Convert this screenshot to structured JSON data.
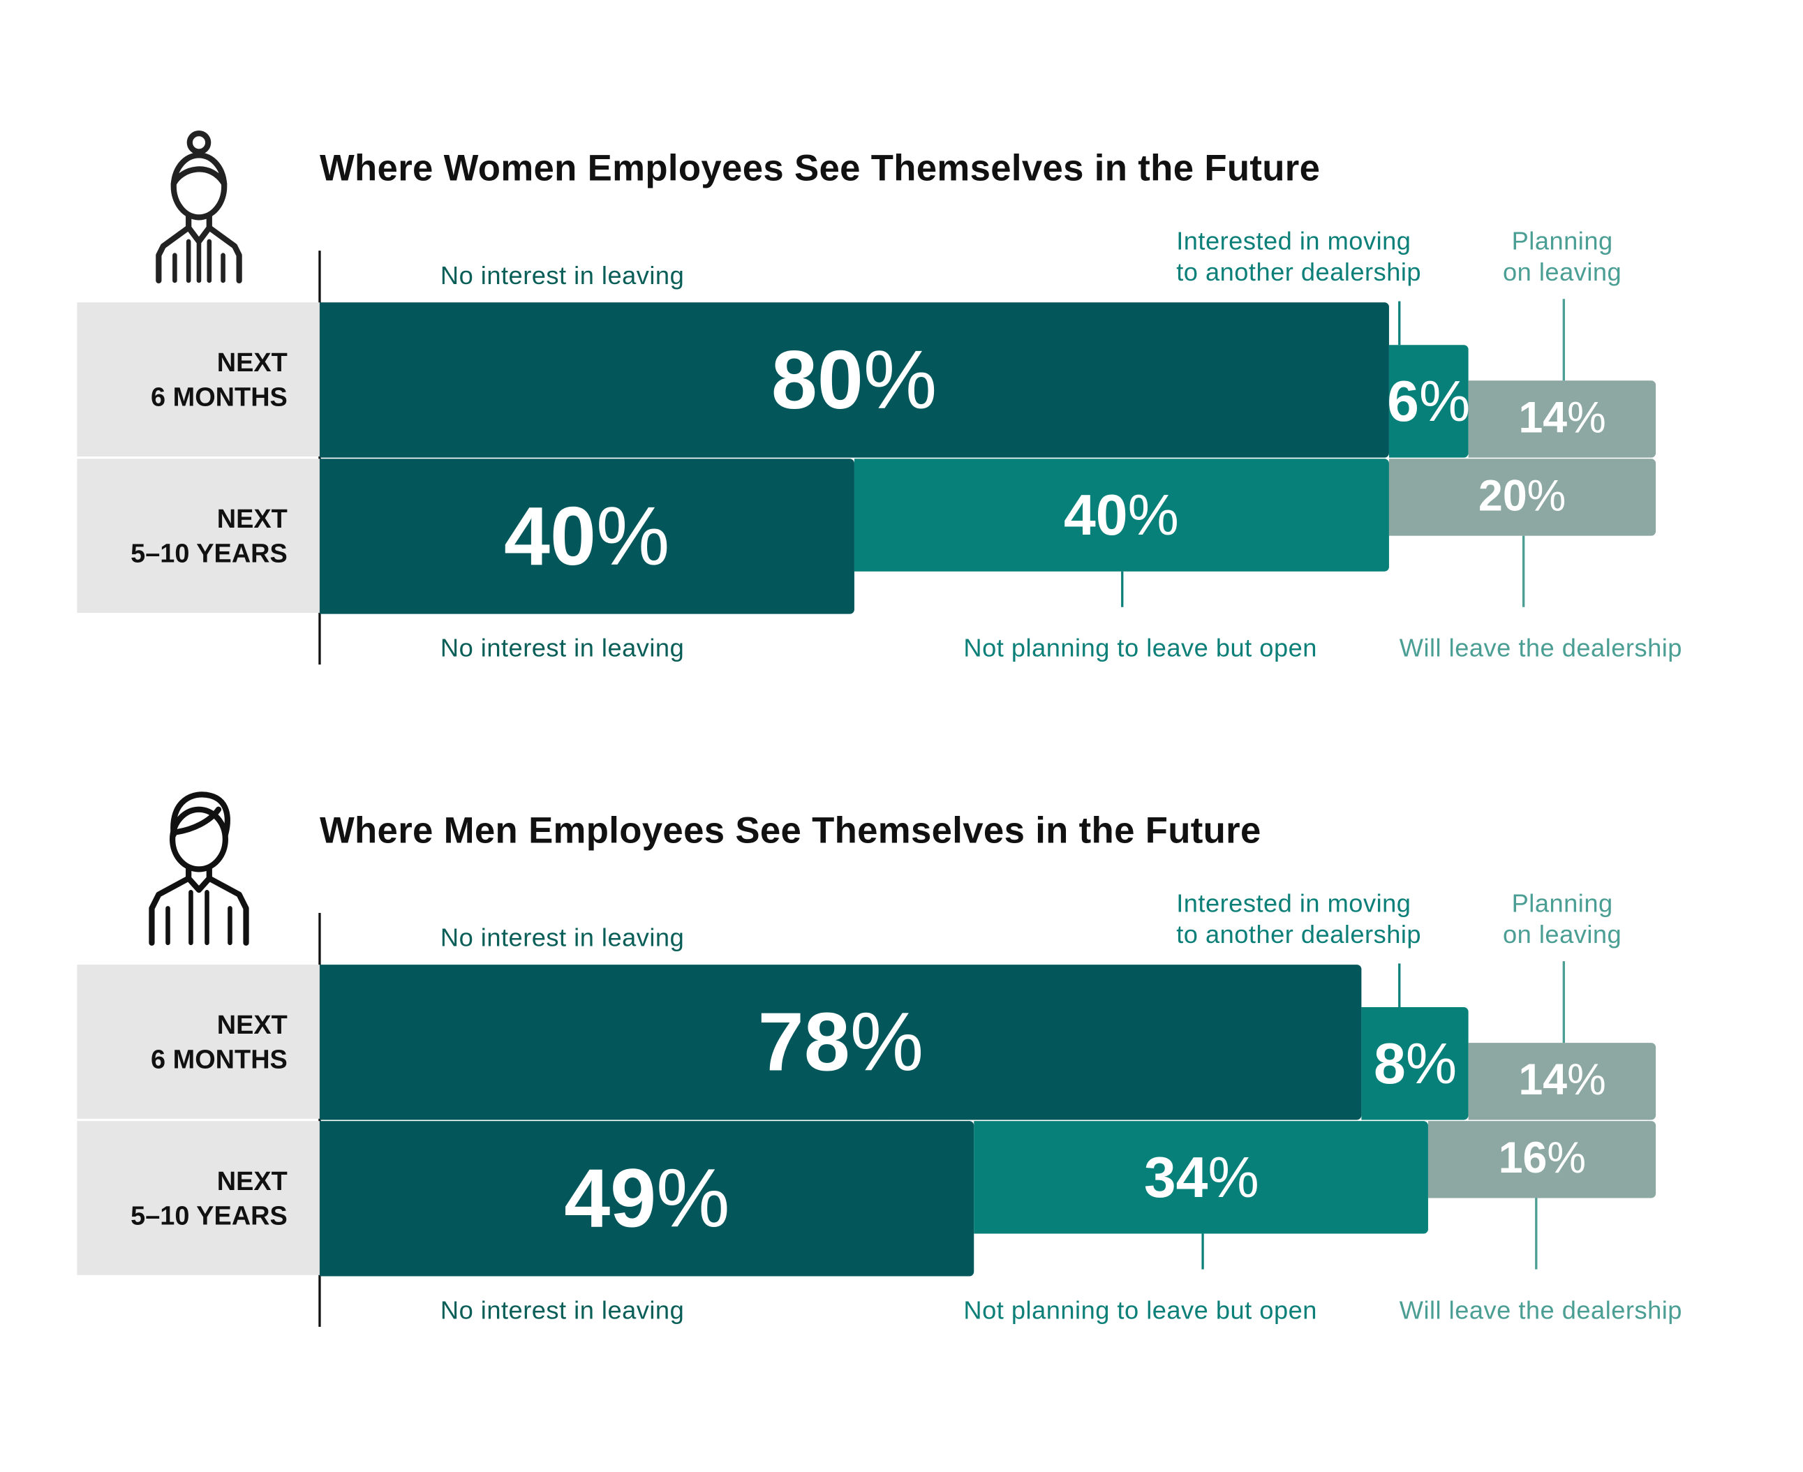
{
  "colors": {
    "no_interest": "#03565a",
    "open": "#068079",
    "leaving": "#8da8a2",
    "label_dark": "#0a5e58",
    "label_teal": "#0c7f78",
    "label_light": "#4a9e93"
  },
  "chart_data": [
    {
      "type": "bar",
      "stacked": true,
      "orientation": "horizontal",
      "title": "Where Women Employees See Themselves in the Future",
      "icon": "woman-icon",
      "rows": [
        {
          "label_line1": "NEXT",
          "label_line2": "6 MONTHS",
          "segments": [
            {
              "name": "No interest in leaving",
              "value": 80
            },
            {
              "name": "Interested in moving to another dealership",
              "value": 6
            },
            {
              "name": "Planning on leaving",
              "value": 14
            }
          ]
        },
        {
          "label_line1": "NEXT",
          "label_line2": "5–10 YEARS",
          "segments": [
            {
              "name": "No interest in leaving",
              "value": 40
            },
            {
              "name": "Not planning to leave but open",
              "value": 40
            },
            {
              "name": "Will leave the dealership",
              "value": 20
            }
          ]
        }
      ],
      "top_labels": {
        "no_interest": "No interest in leaving",
        "moving_1": "Interested in moving",
        "moving_2": "to another dealership",
        "planning_1": "Planning",
        "planning_2": "on leaving"
      },
      "bottom_labels": {
        "no_interest": "No interest in leaving",
        "open": "Not planning to leave but open",
        "will_leave": "Will leave the dealership"
      },
      "xlim": [
        0,
        100
      ]
    },
    {
      "type": "bar",
      "stacked": true,
      "orientation": "horizontal",
      "title": "Where Men Employees See Themselves in the Future",
      "icon": "man-icon",
      "rows": [
        {
          "label_line1": "NEXT",
          "label_line2": "6 MONTHS",
          "segments": [
            {
              "name": "No interest in leaving",
              "value": 78
            },
            {
              "name": "Interested in moving to another dealership",
              "value": 8
            },
            {
              "name": "Planning on leaving",
              "value": 14
            }
          ]
        },
        {
          "label_line1": "NEXT",
          "label_line2": "5–10 YEARS",
          "segments": [
            {
              "name": "No interest in leaving",
              "value": 49
            },
            {
              "name": "Not planning to leave but open",
              "value": 34
            },
            {
              "name": "Will leave the dealership",
              "value": 16
            }
          ]
        }
      ],
      "top_labels": {
        "no_interest": "No interest in leaving",
        "moving_1": "Interested in moving",
        "moving_2": "to another dealership",
        "planning_1": "Planning",
        "planning_2": "on leaving"
      },
      "bottom_labels": {
        "no_interest": "No interest in leaving",
        "open": "Not planning to leave but open",
        "will_leave": "Will leave the dealership"
      },
      "xlim": [
        0,
        100
      ]
    }
  ]
}
